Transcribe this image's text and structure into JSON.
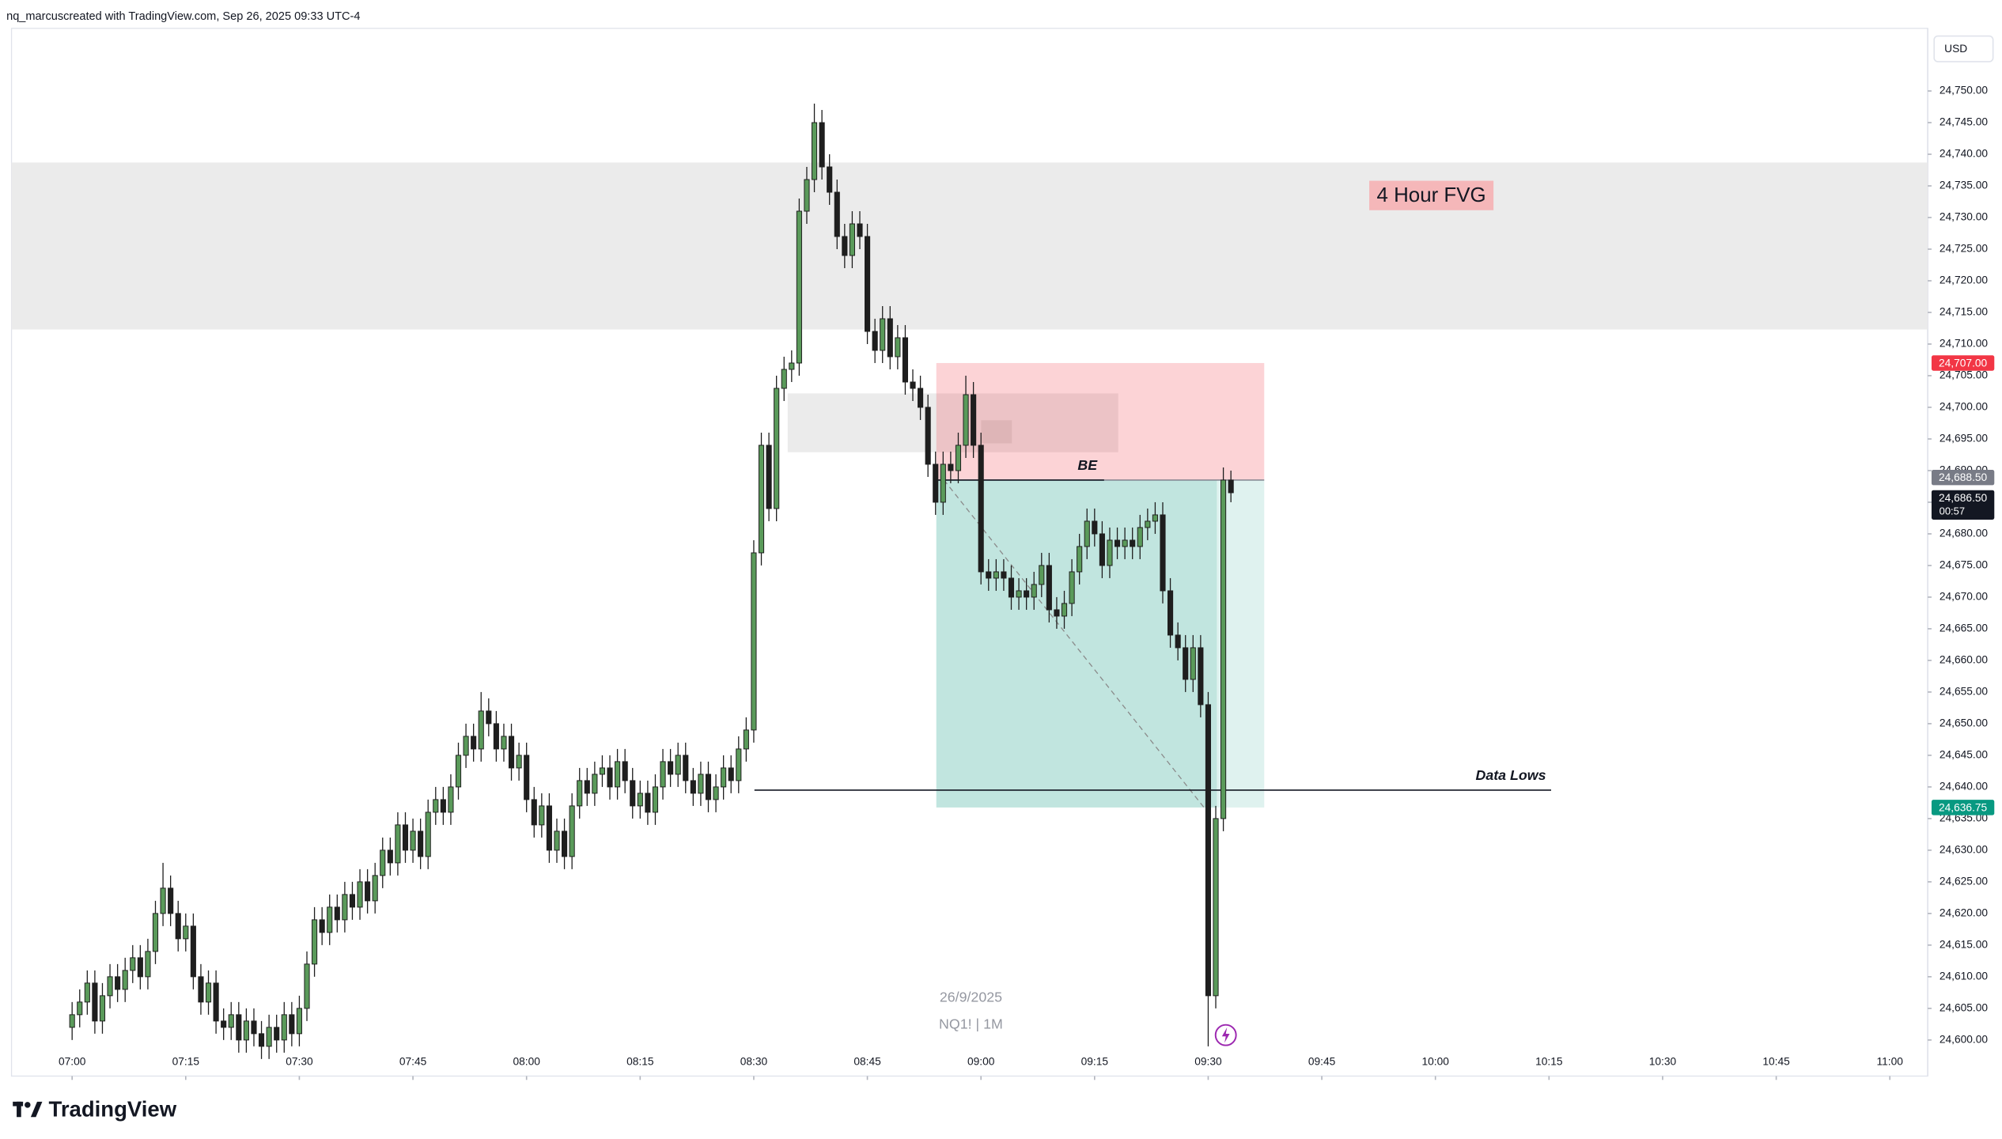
{
  "chart_data": {
    "type": "candlestick",
    "header": "nq_marcuscreated with TradingView.com, Sep 26, 2025 09:33 UTC-4",
    "brand": "TradingView",
    "currency": "USD",
    "symbol": "NQ1! | 1M",
    "date": "26/9/2025",
    "x": [
      "07:00",
      "07:01",
      "07:02",
      "07:03",
      "07:04",
      "07:05",
      "07:06",
      "07:07",
      "07:08",
      "07:09",
      "07:10",
      "07:11",
      "07:12",
      "07:13",
      "07:14",
      "07:15",
      "07:16",
      "07:17",
      "07:18",
      "07:19",
      "07:20",
      "07:21",
      "07:22",
      "07:23",
      "07:24",
      "07:25",
      "07:26",
      "07:27",
      "07:28",
      "07:29",
      "07:30",
      "07:31",
      "07:32",
      "07:33",
      "07:34",
      "07:35",
      "07:36",
      "07:37",
      "07:38",
      "07:39",
      "07:40",
      "07:41",
      "07:42",
      "07:43",
      "07:44",
      "07:45",
      "07:46",
      "07:47",
      "07:48",
      "07:49",
      "07:50",
      "07:51",
      "07:52",
      "07:53",
      "07:54",
      "07:55",
      "07:56",
      "07:57",
      "07:58",
      "07:59",
      "08:00",
      "08:01",
      "08:02",
      "08:03",
      "08:04",
      "08:05",
      "08:06",
      "08:07",
      "08:08",
      "08:09",
      "08:10",
      "08:11",
      "08:12",
      "08:13",
      "08:14",
      "08:15",
      "08:16",
      "08:17",
      "08:18",
      "08:19",
      "08:20",
      "08:21",
      "08:22",
      "08:23",
      "08:24",
      "08:25",
      "08:26",
      "08:27",
      "08:28",
      "08:29",
      "08:30",
      "08:31",
      "08:32",
      "08:33",
      "08:34",
      "08:35",
      "08:36",
      "08:37",
      "08:38",
      "08:39",
      "08:40",
      "08:41",
      "08:42",
      "08:43",
      "08:44",
      "08:45",
      "08:46",
      "08:47",
      "08:48",
      "08:49",
      "08:50",
      "08:51",
      "08:52",
      "08:53",
      "08:54",
      "08:55",
      "08:56",
      "08:57",
      "08:58",
      "08:59",
      "09:00",
      "09:01",
      "09:02",
      "09:03",
      "09:04",
      "09:05",
      "09:06",
      "09:07",
      "09:08",
      "09:09",
      "09:10",
      "09:11",
      "09:12",
      "09:13",
      "09:14",
      "09:15",
      "09:16",
      "09:17",
      "09:18",
      "09:19",
      "09:20",
      "09:21",
      "09:22",
      "09:23",
      "09:24",
      "09:25",
      "09:26",
      "09:27",
      "09:28",
      "09:29",
      "09:30",
      "09:31",
      "09:32",
      "09:33"
    ],
    "open": [
      24602,
      24604,
      24606,
      24609,
      24603,
      24607,
      24610,
      24608,
      24611,
      24613,
      24610,
      24614,
      24620,
      24624,
      24620,
      24616,
      24618,
      24610,
      24606,
      24609,
      24603,
      24602,
      24604,
      24600,
      24603,
      24601,
      24599,
      24602,
      24600,
      24604,
      24601,
      24605,
      24612,
      24619,
      24617,
      24621,
      24619,
      24623,
      24621,
      24625,
      24622,
      24626,
      24630,
      24628,
      24634,
      24630,
      24633,
      24629,
      24636,
      24638,
      24636,
      24640,
      24645,
      24648,
      24646,
      24652,
      24650,
      24646,
      24648,
      24643,
      24645,
      24638,
      24634,
      24637,
      24630,
      24633,
      24629,
      24637,
      24641,
      24639,
      24642,
      24643,
      24640,
      24644,
      24641,
      24637,
      24639,
      24636,
      24640,
      24644,
      24642,
      24645,
      24641,
      24639,
      24642,
      24638,
      24640,
      24643,
      24641,
      24646,
      24649,
      24677,
      24694,
      24684,
      24703,
      24706,
      24707,
      24731,
      24736,
      24745,
      24738,
      24734,
      24727,
      24724,
      24729,
      24727,
      24712,
      24709,
      24714,
      24708,
      24711,
      24704,
      24703,
      24700,
      24691,
      24685,
      24691,
      24690,
      24694,
      24702,
      24694,
      24674,
      24673,
      24674,
      24673,
      24670,
      24671,
      24670,
      24672,
      24675,
      24668,
      24667,
      24669,
      24674,
      24678,
      24682,
      24680,
      24675,
      24679,
      24678,
      24679,
      24678,
      24681,
      24682,
      24683,
      24671,
      24664,
      24662,
      24657,
      24662,
      24653,
      24607,
      24635,
      24688.5
    ],
    "high": [
      24606,
      24608,
      24611,
      24611,
      24609,
      24612,
      24612,
      24613,
      24615,
      24615,
      24616,
      24622,
      24628,
      24626,
      24622,
      24620,
      24620,
      24612,
      24611,
      24611,
      24605,
      24606,
      24606,
      24605,
      24605,
      24603,
      24604,
      24604,
      24606,
      24606,
      24607,
      24614,
      24621,
      24621,
      24623,
      24623,
      24625,
      24625,
      24627,
      24627,
      24628,
      24632,
      24632,
      24636,
      24636,
      24635,
      24635,
      24638,
      24640,
      24640,
      24642,
      24647,
      24650,
      24650,
      24655,
      24654,
      24652,
      24650,
      24650,
      24647,
      24647,
      24640,
      24639,
      24639,
      24635,
      24635,
      24639,
      24643,
      24643,
      24644,
      24645,
      24645,
      24646,
      24646,
      24643,
      24641,
      24641,
      24642,
      24646,
      24646,
      24647,
      24647,
      24643,
      24644,
      24644,
      24642,
      24645,
      24645,
      24648,
      24651,
      24679,
      24696,
      24696,
      24705,
      24708,
      24709,
      24733,
      24738,
      24748,
      24747,
      24740,
      24736,
      24729,
      24731,
      24731,
      24729,
      24714,
      24716,
      24716,
      24713,
      24713,
      24706,
      24705,
      24702,
      24693,
      24693,
      24693,
      24696,
      24705,
      24704,
      24696,
      24676,
      24676,
      24676,
      24675,
      24673,
      24673,
      24674,
      24677,
      24677,
      24670,
      24671,
      24676,
      24680,
      24684,
      24684,
      24682,
      24681,
      24681,
      24681,
      24681,
      24683,
      24684,
      24685,
      24685,
      24673,
      24666,
      24664,
      24664,
      24664,
      24655,
      24637,
      24690.5,
      24690
    ],
    "low": [
      24600,
      24602,
      24604,
      24601,
      24601,
      24605,
      24606,
      24606,
      24609,
      24608,
      24608,
      24612,
      24618,
      24618,
      24614,
      24614,
      24608,
      24604,
      24604,
      24601,
      24600,
      24600,
      24598,
      24598,
      24599,
      24597,
      24597,
      24598,
      24598,
      24599,
      24599,
      24603,
      24610,
      24615,
      24615,
      24617,
      24617,
      24619,
      24619,
      24620,
      24620,
      24624,
      24626,
      24626,
      24628,
      24628,
      24627,
      24627,
      24634,
      24634,
      24634,
      24638,
      24643,
      24644,
      24644,
      24648,
      24644,
      24644,
      24641,
      24641,
      24636,
      24632,
      24632,
      24628,
      24628,
      24627,
      24627,
      24635,
      24637,
      24637,
      24640,
      24638,
      24638,
      24639,
      24635,
      24635,
      24634,
      24634,
      24638,
      24640,
      24640,
      24639,
      24637,
      24637,
      24636,
      24636,
      24638,
      24639,
      24639,
      24644,
      24647,
      24675,
      24682,
      24682,
      24701,
      24704,
      24705,
      24729,
      24734,
      24736,
      24732,
      24725,
      24722,
      24722,
      24725,
      24710,
      24707,
      24707,
      24706,
      24706,
      24702,
      24701,
      24698,
      24689,
      24683,
      24683,
      24688,
      24688,
      24692,
      24692,
      24672,
      24671,
      24671,
      24671,
      24668,
      24668,
      24668,
      24668,
      24670,
      24666,
      24665,
      24665,
      24667,
      24672,
      24676,
      24678,
      24673,
      24673,
      24676,
      24676,
      24676,
      24676,
      24679,
      24680,
      24669,
      24662,
      24660,
      24655,
      24655,
      24651,
      24599,
      24605,
      24633,
      24685
    ],
    "close": [
      24604,
      24606,
      24609,
      24603,
      24607,
      24610,
      24608,
      24611,
      24613,
      24610,
      24614,
      24620,
      24624,
      24620,
      24616,
      24618,
      24610,
      24606,
      24609,
      24603,
      24602,
      24604,
      24600,
      24603,
      24601,
      24599,
      24602,
      24600,
      24604,
      24601,
      24605,
      24612,
      24619,
      24617,
      24621,
      24619,
      24623,
      24621,
      24625,
      24622,
      24626,
      24630,
      24628,
      24634,
      24630,
      24633,
      24629,
      24636,
      24638,
      24636,
      24640,
      24645,
      24648,
      24646,
      24652,
      24650,
      24646,
      24648,
      24643,
      24645,
      24638,
      24634,
      24637,
      24630,
      24633,
      24629,
      24637,
      24641,
      24639,
      24642,
      24643,
      24640,
      24644,
      24641,
      24637,
      24639,
      24636,
      24640,
      24644,
      24642,
      24645,
      24641,
      24639,
      24642,
      24638,
      24640,
      24643,
      24641,
      24646,
      24649,
      24677,
      24694,
      24684,
      24703,
      24706,
      24707,
      24731,
      24736,
      24745,
      24738,
      24734,
      24727,
      24724,
      24729,
      24727,
      24712,
      24709,
      24714,
      24708,
      24711,
      24704,
      24703,
      24700,
      24691,
      24685,
      24691,
      24690,
      24694,
      24702,
      24694,
      24674,
      24673,
      24674,
      24673,
      24670,
      24671,
      24670,
      24672,
      24675,
      24668,
      24667,
      24669,
      24674,
      24678,
      24682,
      24680,
      24675,
      24679,
      24678,
      24679,
      24678,
      24681,
      24682,
      24683,
      24671,
      24664,
      24662,
      24657,
      24662,
      24653,
      24607,
      24635,
      24688.5,
      24686.5
    ],
    "up_color": "#5a9a5a",
    "down_color": "#1e1e1e",
    "xlim": [
      "06:52",
      "11:05"
    ],
    "xticks": [
      "07:00",
      "07:15",
      "07:30",
      "07:45",
      "08:00",
      "08:15",
      "08:30",
      "08:45",
      "09:00",
      "09:15",
      "09:30",
      "09:45",
      "10:00",
      "10:15",
      "10:30",
      "10:45",
      "11:00"
    ],
    "ylim": [
      24594.3,
      24759.9
    ],
    "yticks": [
      {
        "value": 24600,
        "label": "24,600.00"
      },
      {
        "value": 24605,
        "label": "24,605.00"
      },
      {
        "value": 24610,
        "label": "24,610.00"
      },
      {
        "value": 24615,
        "label": "24,615.00"
      },
      {
        "value": 24620,
        "label": "24,620.00"
      },
      {
        "value": 24625,
        "label": "24,625.00"
      },
      {
        "value": 24630,
        "label": "24,630.00"
      },
      {
        "value": 24635,
        "label": "24,635.00"
      },
      {
        "value": 24640,
        "label": "24,640.00"
      },
      {
        "value": 24645,
        "label": "24,645.00"
      },
      {
        "value": 24650,
        "label": "24,650.00"
      },
      {
        "value": 24655,
        "label": "24,655.00"
      },
      {
        "value": 24660,
        "label": "24,660.00"
      },
      {
        "value": 24665,
        "label": "24,665.00"
      },
      {
        "value": 24670,
        "label": "24,670.00"
      },
      {
        "value": 24675,
        "label": "24,675.00"
      },
      {
        "value": 24680,
        "label": "24,680.00"
      },
      {
        "value": 24685,
        "label": "24,685.00"
      },
      {
        "value": 24690,
        "label": "24,690.00"
      },
      {
        "value": 24695,
        "label": "24,695.00"
      },
      {
        "value": 24700,
        "label": "24,700.00"
      },
      {
        "value": 24705,
        "label": "24,705.00"
      },
      {
        "value": 24710,
        "label": "24,710.00"
      },
      {
        "value": 24715,
        "label": "24,715.00"
      },
      {
        "value": 24720,
        "label": "24,720.00"
      },
      {
        "value": 24725,
        "label": "24,725.00"
      },
      {
        "value": 24730,
        "label": "24,730.00"
      },
      {
        "value": 24735,
        "label": "24,735.00"
      },
      {
        "value": 24740,
        "label": "24,740.00"
      },
      {
        "value": 24745,
        "label": "24,745.00"
      },
      {
        "value": 24750,
        "label": "24,750.00"
      }
    ],
    "zones": [
      {
        "top": 24738.7,
        "bottom": 24712.3,
        "label": "4 Hour FVG",
        "color": "#ebebeb"
      },
      {
        "top": 24702.2,
        "bottom": 24692.9,
        "color": "#ebebeb"
      }
    ],
    "position": {
      "stop": {
        "value": 24707,
        "label": "24,707.00"
      },
      "entry": {
        "value": 24688.5,
        "label": "24,688.50"
      },
      "target": {
        "value": 24636.75,
        "label": "24,636.75"
      },
      "entry_label": "BE"
    },
    "levels": [
      {
        "value": 24639.5,
        "label": "Data Lows"
      }
    ],
    "last_price": {
      "value": 24686.5,
      "label": "24,686.50",
      "countdown": "00:57"
    }
  }
}
